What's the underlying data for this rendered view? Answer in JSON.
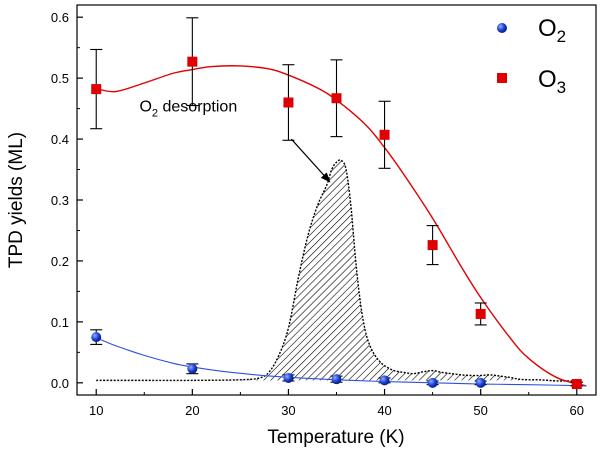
{
  "chart_data": {
    "type": "scatter",
    "title": "",
    "xlabel": "Temperature (K)",
    "ylabel": "TPD yields (ML)",
    "xlim": [
      8,
      62
    ],
    "ylim": [
      -0.02,
      0.62
    ],
    "x_ticks": [
      10,
      20,
      30,
      40,
      50,
      60
    ],
    "y_ticks": [
      0.0,
      0.1,
      0.2,
      0.3,
      0.4,
      0.5,
      0.6
    ],
    "legend_position": "top-right",
    "series": [
      {
        "name": "O2",
        "name_base": "O",
        "name_sub": "2",
        "marker": "circle",
        "color": "#1a3fd6",
        "x": [
          10,
          20,
          30,
          35,
          40,
          45,
          50,
          60
        ],
        "y": [
          0.075,
          0.023,
          0.008,
          0.006,
          0.004,
          0.0,
          0.0,
          -0.002
        ],
        "err": [
          0.012,
          0.008,
          0.005,
          0.005,
          0.004,
          0.003,
          0.003,
          0.003
        ],
        "fit_color": "#3050e0"
      },
      {
        "name": "O3",
        "name_base": "O",
        "name_sub": "3",
        "marker": "square",
        "color": "#e00000",
        "x": [
          10,
          20,
          30,
          35,
          40,
          45,
          50,
          60
        ],
        "y": [
          0.482,
          0.527,
          0.46,
          0.467,
          0.407,
          0.226,
          0.113,
          -0.002
        ],
        "err": [
          0.065,
          0.072,
          0.062,
          0.063,
          0.055,
          0.032,
          0.018,
          0.003
        ],
        "fit_color": "#e00000"
      }
    ],
    "o3_fit_curve": {
      "x": [
        10,
        12,
        15,
        18,
        20,
        22,
        25,
        28,
        30,
        33,
        35,
        38,
        40,
        42,
        45,
        48,
        50,
        53,
        55,
        58,
        61
      ],
      "y": [
        0.483,
        0.478,
        0.492,
        0.508,
        0.514,
        0.519,
        0.52,
        0.515,
        0.505,
        0.484,
        0.464,
        0.424,
        0.386,
        0.342,
        0.27,
        0.19,
        0.14,
        0.075,
        0.04,
        0.008,
        -0.005
      ]
    },
    "o2_fit_curve": {
      "x": [
        10,
        12,
        15,
        18,
        20,
        23,
        26,
        30,
        35,
        40,
        45,
        50,
        55,
        61
      ],
      "y": [
        0.074,
        0.061,
        0.045,
        0.032,
        0.026,
        0.019,
        0.014,
        0.009,
        0.005,
        0.002,
        0.0,
        -0.002,
        -0.003,
        -0.005
      ]
    },
    "desorption_trace": {
      "x": [
        10,
        15,
        20,
        25,
        27,
        28,
        29,
        30,
        31,
        32,
        33,
        34,
        34.5,
        35,
        35.5,
        36,
        36.5,
        37,
        37.5,
        38,
        38.5,
        39,
        39.5,
        40,
        41,
        42,
        43,
        44,
        45,
        46,
        47,
        48,
        49,
        50,
        51,
        52,
        53,
        54,
        55,
        56,
        57,
        58,
        59,
        60
      ],
      "y": [
        0.004,
        0.004,
        0.004,
        0.005,
        0.008,
        0.018,
        0.045,
        0.09,
        0.17,
        0.24,
        0.29,
        0.325,
        0.35,
        0.362,
        0.365,
        0.35,
        0.29,
        0.2,
        0.13,
        0.085,
        0.06,
        0.045,
        0.035,
        0.028,
        0.02,
        0.017,
        0.015,
        0.018,
        0.02,
        0.017,
        0.015,
        0.013,
        0.012,
        0.012,
        0.013,
        0.011,
        0.009,
        0.006,
        0.005,
        0.005,
        0.004,
        0.003,
        0.003,
        0.003
      ]
    },
    "annotation": {
      "text_base": "O",
      "text_sub": "2",
      "text_rest": " desorption",
      "label_at": [
        14.5,
        0.445
      ],
      "arrow_from": [
        30.3,
        0.4
      ],
      "arrow_to": [
        34.3,
        0.33
      ]
    }
  }
}
